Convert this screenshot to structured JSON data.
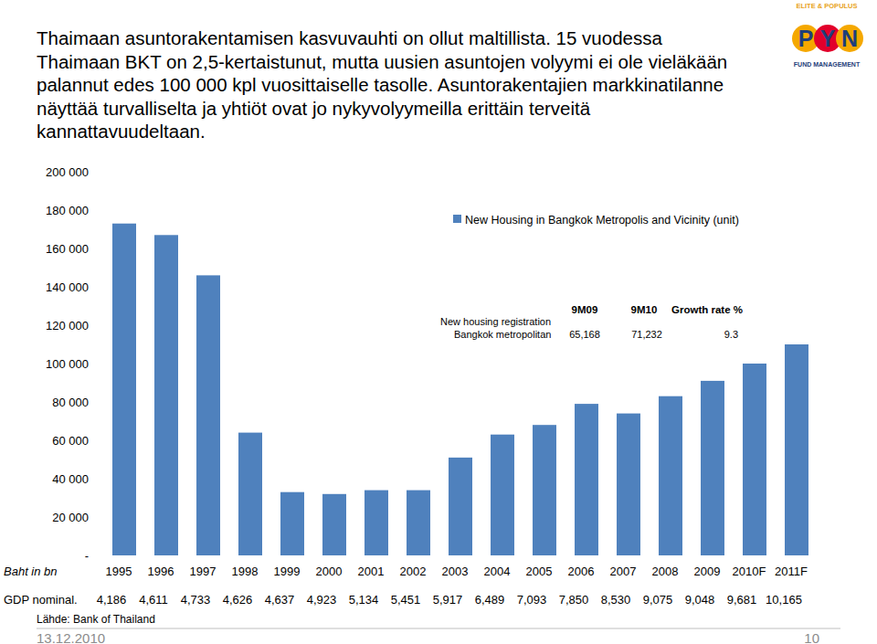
{
  "header": {
    "lines": [
      "Thaimaan asuntorakentamisen kasvuvauhti on ollut maltillista. 15 vuodessa",
      "Thaimaan BKT on 2,5-kertaistunut, mutta uusien asuntojen volyymi ei ole vieläkään",
      "palannut edes 100 000 kpl vuosittaiselle tasolle. Asuntorakentajien markkinatilanne",
      "näyttää turvalliselta ja yhtiöt ovat jo nykyvolyymeilla erittäin terveitä",
      "kannattavuudeltaan."
    ]
  },
  "logo": {
    "top": "ELITE & POPULUS",
    "letters": [
      "P",
      "Y",
      "N"
    ],
    "bottom": "FUND MANAGEMENT"
  },
  "chart_data": {
    "type": "bar",
    "categories": [
      "1995",
      "1996",
      "1997",
      "1998",
      "1999",
      "2000",
      "2001",
      "2002",
      "2003",
      "2004",
      "2005",
      "2006",
      "2007",
      "2008",
      "2009",
      "2010F",
      "2011F"
    ],
    "series": [
      {
        "name": "New Housing in Bangkok Metropolis and Vicinity (unit)",
        "color": "#4f81bd",
        "values": [
          173000,
          167000,
          146000,
          64000,
          33000,
          32000,
          34000,
          34000,
          51000,
          63000,
          68000,
          79000,
          74000,
          83000,
          91000,
          100000,
          110000
        ]
      }
    ],
    "ylim": [
      0,
      200000
    ],
    "yticks": [
      {
        "value": 0,
        "label": "-"
      },
      {
        "value": 20000,
        "label": "20 000"
      },
      {
        "value": 40000,
        "label": "40 000"
      },
      {
        "value": 60000,
        "label": "60 000"
      },
      {
        "value": 80000,
        "label": "80 000"
      },
      {
        "value": 100000,
        "label": "100 000"
      },
      {
        "value": 120000,
        "label": "120 000"
      },
      {
        "value": 140000,
        "label": "140 000"
      },
      {
        "value": 160000,
        "label": "160 000"
      },
      {
        "value": 180000,
        "label": "180 000"
      },
      {
        "value": 200000,
        "label": "200 000"
      }
    ],
    "grid": false,
    "legend": "top-right"
  },
  "inset_table": {
    "headers": [
      "9M09",
      "9M10",
      "Growth rate %"
    ],
    "row_label": [
      "New housing registration",
      "Bangkok metropolitan"
    ],
    "values": [
      "65,168",
      "71,232",
      "9.3"
    ]
  },
  "gdp_table": {
    "unit": "Baht in bn",
    "label": "GDP nominal.",
    "values": [
      "4,186",
      "4,611",
      "4,733",
      "4,626",
      "4,637",
      "4,923",
      "5,134",
      "5,451",
      "5,917",
      "6,489",
      "7,093",
      "7,850",
      "8,530",
      "9,075",
      "9,048",
      "9,681",
      "10,165"
    ]
  },
  "footer": {
    "source": "Lähde: Bank of Thailand",
    "date": "13.12.2010",
    "page": "10"
  }
}
